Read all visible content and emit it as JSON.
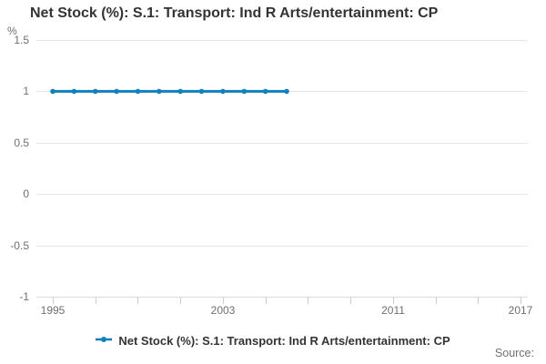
{
  "title": "Net Stock (%): S.1: Transport: Ind R Arts/entertainment: CP",
  "source_label": "Source:",
  "legend": {
    "label": "Net Stock (%): S.1: Transport: Ind R Arts/entertainment: CP",
    "position": "bottom-center"
  },
  "colors": {
    "series": "#1380be",
    "grid": "#e6e6e6",
    "axis_line": "#d5dce3",
    "tick_mark": "#c3cfdc",
    "muted_text": "#6f6f6f",
    "title_text": "#333333"
  },
  "chart_data": {
    "type": "line",
    "title": "Net Stock (%): S.1: Transport: Ind R Arts/entertainment: CP",
    "series_name": "Net Stock (%): S.1: Transport: Ind R Arts/entertainment: CP",
    "unit_label": "%",
    "x": [
      1995,
      1996,
      1997,
      1998,
      1999,
      2000,
      2001,
      2002,
      2003,
      2004,
      2005,
      2006
    ],
    "values": [
      1,
      1,
      1,
      1,
      1,
      1,
      1,
      1,
      1,
      1,
      1,
      1
    ],
    "x_axis": {
      "tick_years": [
        1995,
        1997,
        1999,
        2001,
        2003,
        2005,
        2007,
        2009,
        2011,
        2013,
        2015,
        2017
      ],
      "labeled_ticks": [
        1995,
        2003,
        2011,
        2017
      ],
      "range_years": [
        1994.2,
        2017.35
      ]
    },
    "y_axis": {
      "ticks": [
        1.5,
        1,
        0.5,
        0,
        -0.5,
        -1
      ],
      "range": [
        -1,
        1.5
      ]
    },
    "grid": true,
    "marker": "round",
    "legend_position": "bottom"
  }
}
